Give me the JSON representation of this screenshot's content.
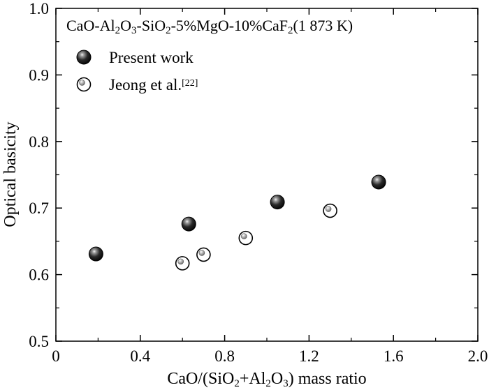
{
  "chart_data": {
    "type": "scatter",
    "title_parts": [
      {
        "t": "CaO-Al"
      },
      {
        "t": "2",
        "sub": true
      },
      {
        "t": "O"
      },
      {
        "t": "3",
        "sub": true
      },
      {
        "t": "-SiO"
      },
      {
        "t": "2",
        "sub": true
      },
      {
        "t": "-5%MgO-10%CaF"
      },
      {
        "t": "2",
        "sub": true
      },
      {
        "t": "(1 873 K)"
      }
    ],
    "xlabel_parts": [
      {
        "t": "CaO/(SiO"
      },
      {
        "t": "2",
        "sub": true
      },
      {
        "t": "+Al"
      },
      {
        "t": "2",
        "sub": true
      },
      {
        "t": "O"
      },
      {
        "t": "3",
        "sub": true
      },
      {
        "t": ") mass ratio"
      }
    ],
    "ylabel": "Optical basicity",
    "xlim": [
      0,
      2.0
    ],
    "ylim": [
      0.5,
      1.0
    ],
    "xticks": [
      "0",
      "0.4",
      "0.8",
      "1.2",
      "1.6",
      "2.0"
    ],
    "xtick_values": [
      0,
      0.4,
      0.8,
      1.2,
      1.6,
      2.0
    ],
    "yticks": [
      "0.5",
      "0.6",
      "0.7",
      "0.8",
      "0.9",
      "1.0"
    ],
    "ytick_values": [
      0.5,
      0.6,
      0.7,
      0.8,
      0.9,
      1.0
    ],
    "grid": false,
    "legend_position": "top-left",
    "series": [
      {
        "name": "Present work",
        "marker": "filled-sphere",
        "color": "#111111",
        "points": [
          {
            "x": 0.19,
            "y": 0.631
          },
          {
            "x": 0.63,
            "y": 0.676
          },
          {
            "x": 1.05,
            "y": 0.709
          },
          {
            "x": 1.53,
            "y": 0.739
          }
        ]
      },
      {
        "name": "Jeong et al.",
        "name_superscript": "[22]",
        "marker": "open-circle",
        "color": "#000000",
        "points": [
          {
            "x": 0.6,
            "y": 0.617
          },
          {
            "x": 0.7,
            "y": 0.63
          },
          {
            "x": 0.9,
            "y": 0.655
          },
          {
            "x": 1.3,
            "y": 0.696
          }
        ]
      }
    ]
  }
}
